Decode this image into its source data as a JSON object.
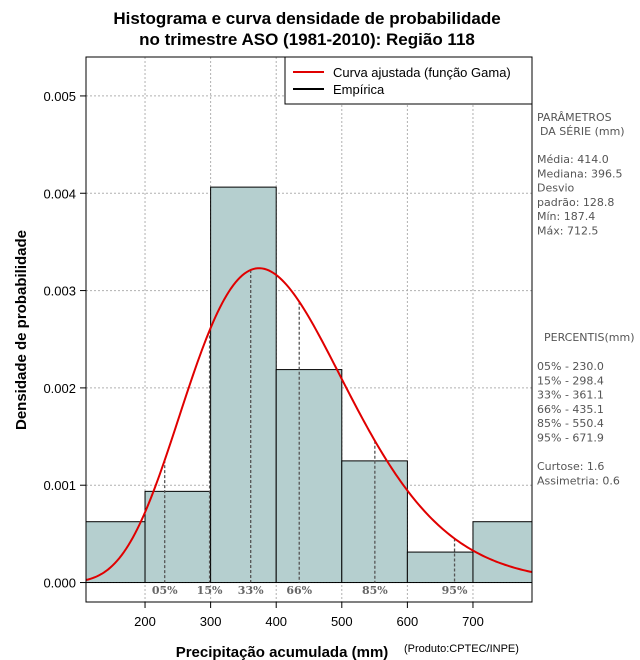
{
  "chart_data": {
    "type": "histogram",
    "title_line1": "Histograma e curva densidade de probabilidade",
    "title_line2": "no trimestre ASO (1981-2010): Região 118",
    "xlabel": "Precipitação acumulada (mm)",
    "ylabel": "Densidade de probabilidade",
    "credit": "(Produto:CPTEC/INPE)",
    "xlim": [
      110,
      790
    ],
    "ylim": [
      -0.0002,
      0.0054
    ],
    "x_ticks": [
      200,
      300,
      400,
      500,
      600,
      700
    ],
    "x_tick_labels": [
      "200",
      "300",
      "400",
      "500",
      "600",
      "700"
    ],
    "y_ticks": [
      0.0,
      0.001,
      0.002,
      0.003,
      0.004,
      0.005
    ],
    "y_tick_labels": [
      "0.000",
      "0.001",
      "0.002",
      "0.003",
      "0.004",
      "0.005"
    ],
    "grid": true,
    "bins": [
      {
        "start": 110,
        "end": 200,
        "density": 0.000625
      },
      {
        "start": 200,
        "end": 300,
        "density": 0.000937
      },
      {
        "start": 300,
        "end": 400,
        "density": 0.004063
      },
      {
        "start": 400,
        "end": 500,
        "density": 0.002188
      },
      {
        "start": 500,
        "end": 600,
        "density": 0.00125
      },
      {
        "start": 600,
        "end": 700,
        "density": 0.000313
      },
      {
        "start": 700,
        "end": 790,
        "density": 0.000625
      }
    ],
    "bar_color": "#b5cfcf",
    "curve": {
      "name": "Curva ajustada (função Gama)",
      "color": "#e00000",
      "distribution": "gamma",
      "shape": 10.33,
      "scale": 40.08
    },
    "empirical": {
      "name": "Empírica",
      "color": "#000000"
    },
    "legend_position": "top-right",
    "percentile_markers": [
      {
        "label": "05%",
        "value": 230.0
      },
      {
        "label": "15%",
        "value": 298.4
      },
      {
        "label": "33%",
        "value": 361.1
      },
      {
        "label": "66%",
        "value": 435.1
      },
      {
        "label": "85%",
        "value": 550.4
      },
      {
        "label": "95%",
        "value": 671.9
      }
    ]
  },
  "side_panel": {
    "params_header_1": "PARÂMETROS",
    "params_header_2": "DA SÉRIE (mm)",
    "params": [
      {
        "text": "Média:  414.0"
      },
      {
        "text": "Mediana:  396.5"
      },
      {
        "text": "Desvio"
      },
      {
        "text": "padrão:  128.8"
      },
      {
        "text": "Mín:  187.4"
      },
      {
        "text": "Máx:  712.5"
      }
    ],
    "percentis_header": "PERCENTIS(mm)",
    "percentis": [
      {
        "text": "05% -  230.0"
      },
      {
        "text": "15% -  298.4"
      },
      {
        "text": "33% -  361.1"
      },
      {
        "text": "66% -  435.1"
      },
      {
        "text": "85% -  550.4"
      },
      {
        "text": "95% -  671.9"
      }
    ],
    "stats": [
      {
        "text": "Curtose:  1.6"
      },
      {
        "text": "Assimetria:  0.6"
      }
    ]
  }
}
